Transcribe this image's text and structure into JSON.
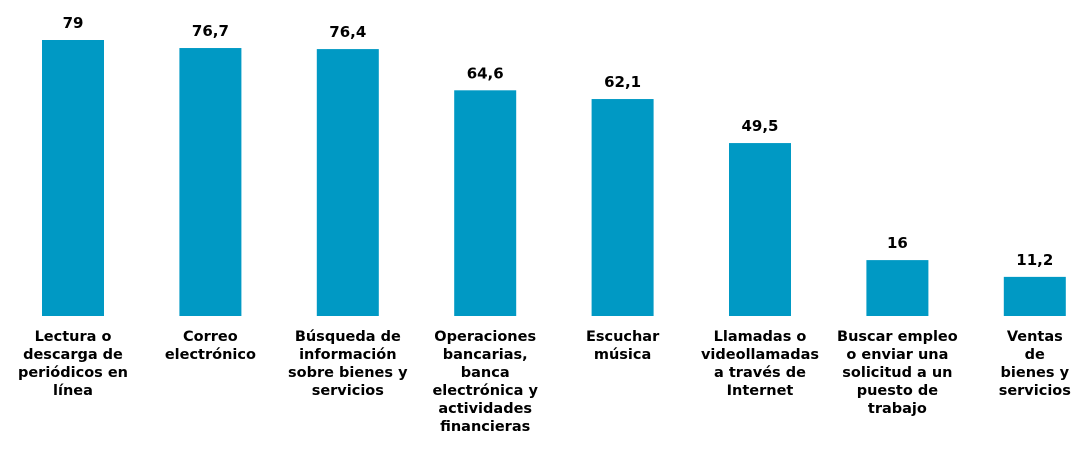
{
  "chart_data": {
    "type": "bar",
    "categories": [
      "Lectura o descarga de periódicos en línea",
      "Correo electrónico",
      "Búsqueda de información sobre bienes y servicios",
      "Operaciones bancarias, banca electrónica y actividades financieras",
      "Escuchar música",
      "Llamadas o videollamadas a través de Internet",
      "Buscar empleo o enviar una solicitud a un puesto de trabajo",
      "Ventas de bienes y servicios"
    ],
    "values": [
      79,
      76.7,
      76.4,
      64.6,
      62.1,
      49.5,
      16,
      11.2
    ],
    "value_labels": [
      "79",
      "76,7",
      "76,4",
      "64,6",
      "62,1",
      "49,5",
      "16",
      "11,2"
    ],
    "color": "#0099c4",
    "ylim": [
      0,
      79
    ]
  }
}
